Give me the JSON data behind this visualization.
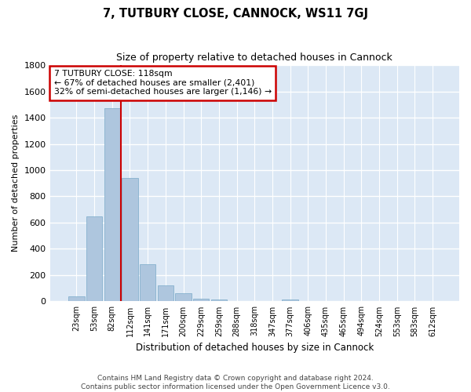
{
  "title": "7, TUTBURY CLOSE, CANNOCK, WS11 7GJ",
  "subtitle": "Size of property relative to detached houses in Cannock",
  "xlabel": "Distribution of detached houses by size in Cannock",
  "ylabel": "Number of detached properties",
  "footer_line1": "Contains HM Land Registry data © Crown copyright and database right 2024.",
  "footer_line2": "Contains public sector information licensed under the Open Government Licence v3.0.",
  "categories": [
    "23sqm",
    "53sqm",
    "82sqm",
    "112sqm",
    "141sqm",
    "171sqm",
    "200sqm",
    "229sqm",
    "259sqm",
    "288sqm",
    "318sqm",
    "347sqm",
    "377sqm",
    "406sqm",
    "435sqm",
    "465sqm",
    "494sqm",
    "524sqm",
    "553sqm",
    "583sqm",
    "612sqm"
  ],
  "values": [
    38,
    648,
    1474,
    940,
    285,
    125,
    62,
    22,
    12,
    0,
    0,
    0,
    12,
    0,
    0,
    0,
    0,
    0,
    0,
    0,
    0
  ],
  "bar_color": "#aec6de",
  "bar_edge_color": "#7aaac8",
  "background_color": "#dce8f5",
  "grid_color": "#ffffff",
  "fig_background": "#ffffff",
  "annotation_box_color": "#cc0000",
  "property_line_color": "#cc0000",
  "annotation_text_line1": "7 TUTBURY CLOSE: 118sqm",
  "annotation_text_line2": "← 67% of detached houses are smaller (2,401)",
  "annotation_text_line3": "32% of semi-detached houses are larger (1,146) →",
  "ylim": [
    0,
    1800
  ],
  "yticks": [
    0,
    200,
    400,
    600,
    800,
    1000,
    1200,
    1400,
    1600,
    1800
  ],
  "property_line_index": 3
}
